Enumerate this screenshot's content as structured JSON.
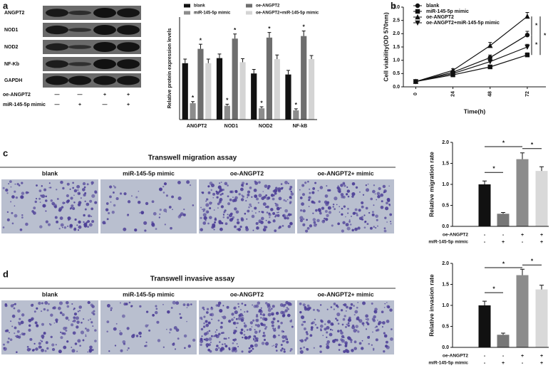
{
  "chart_data": [
    {
      "type": "bar",
      "panel": "a",
      "blot_labels": [
        "ANGPT2",
        "NOD1",
        "NOD2",
        "NF-Kb",
        "GAPDH"
      ],
      "condition_rows": [
        {
          "name": "oe-ANGPT2",
          "signs": [
            "—",
            "—",
            "+",
            "+"
          ]
        },
        {
          "name": "miR-145-5p mimic",
          "signs": [
            "—",
            "+",
            "—",
            "+"
          ]
        }
      ],
      "y_label": "Relative protein expression levels",
      "categories": [
        "ANGPT2",
        "NOD1",
        "NOD2",
        "NF-kB"
      ],
      "series": [
        {
          "name": "blank",
          "color": "#111111",
          "values": [
            1.1,
            1.2,
            0.9,
            0.88
          ],
          "errors": [
            0.08,
            0.08,
            0.08,
            0.08
          ]
        },
        {
          "name": "miR-145-5p mimic",
          "color": "#8c8c8c",
          "values": [
            0.32,
            0.27,
            0.22,
            0.18
          ],
          "errors": [
            0.03,
            0.03,
            0.03,
            0.03
          ],
          "marks": [
            "*",
            "*",
            "*",
            "*"
          ]
        },
        {
          "name": "oe-ANGPT2",
          "color": "#6e6e6e",
          "values": [
            1.38,
            1.58,
            1.6,
            1.63
          ],
          "errors": [
            0.09,
            0.09,
            0.1,
            0.1
          ],
          "marks": [
            "*",
            "*",
            "*",
            "*"
          ]
        },
        {
          "name": "oe-ANGPT2+miR-145-5p mimic",
          "color": "#d4d4d4",
          "values": [
            1.1,
            1.12,
            1.18,
            1.18
          ],
          "errors": [
            0.08,
            0.07,
            0.08,
            0.07
          ]
        }
      ],
      "ylim": [
        0,
        2
      ]
    },
    {
      "type": "line",
      "panel": "b",
      "y_label": "Cell viability(OD 570nm)",
      "x_label": "Time(h)",
      "x": [
        0,
        24,
        48,
        72
      ],
      "xlim": [
        -8,
        84
      ],
      "xticks": [
        0,
        24,
        48,
        72
      ],
      "ylim": [
        0,
        3
      ],
      "yticks": [
        {
          "value": 0,
          "label": "0.0"
        },
        0.5,
        {
          "value": 1,
          "label": "1.0"
        },
        1.5,
        {
          "value": 2,
          "label": "2.0"
        },
        2.5,
        {
          "value": 3,
          "label": "3.0"
        }
      ],
      "series": [
        {
          "name": "blank",
          "marker": "circle",
          "color": "#111111",
          "values": [
            0.2,
            0.55,
            1.1,
            1.95
          ],
          "errors": [
            0.03,
            0.06,
            0.1,
            0.14
          ]
        },
        {
          "name": "miR-145-5p mimic",
          "marker": "square",
          "color": "#111111",
          "values": [
            0.2,
            0.45,
            0.75,
            1.2
          ],
          "errors": [
            0.03,
            0.05,
            0.07,
            0.08
          ]
        },
        {
          "name": "oe-ANGPT2",
          "marker": "triangle-up",
          "color": "#111111",
          "values": [
            0.2,
            0.62,
            1.55,
            2.65
          ],
          "errors": [
            0.03,
            0.06,
            0.12,
            0.15
          ]
        },
        {
          "name": "oe-ANGPT2+miR-145-5p mimic",
          "marker": "triangle-down",
          "color": "#111111",
          "values": [
            0.2,
            0.5,
            0.95,
            1.5
          ],
          "errors": [
            0.03,
            0.05,
            0.08,
            0.1
          ]
        }
      ],
      "significance": [
        "*",
        "*",
        "*"
      ]
    },
    {
      "type": "bar",
      "panel": "c",
      "assay_title": "Transwell migration assay",
      "image_labels": [
        "blank",
        "miR-145-5p mimic",
        "oe-ANGPT2",
        "oe-ANGPT2+ mimic"
      ],
      "y_label": "Relative migration rate",
      "values": [
        1.0,
        0.3,
        1.6,
        1.32
      ],
      "errors": [
        0.08,
        0.03,
        0.15,
        0.1
      ],
      "colors": [
        "#111111",
        "#777777",
        "#8c8c8c",
        "#d9d9d9"
      ],
      "ylim": [
        0,
        2
      ],
      "yticks": [
        {
          "value": 0,
          "label": "0.0"
        },
        0.5,
        {
          "value": 1,
          "label": "1.0"
        },
        1.5,
        {
          "value": 2,
          "label": "2.0"
        }
      ],
      "condition_rows": [
        {
          "name": "oe-ANGPT2",
          "signs": [
            "-",
            "-",
            "+",
            "+"
          ]
        },
        {
          "name": "miR-145-5p mimic",
          "signs": [
            "-",
            "+",
            "-",
            "+"
          ]
        }
      ],
      "significance": [
        "*",
        "*",
        "*"
      ]
    },
    {
      "type": "bar",
      "panel": "d",
      "assay_title": "Transwell invasive assay",
      "image_labels": [
        "blank",
        "miR-145-5p mimic",
        "oe-ANGPT2",
        "oe-ANGPT2+ mimic"
      ],
      "y_label": "Relative invasion rate",
      "values": [
        1.0,
        0.3,
        1.72,
        1.38
      ],
      "errors": [
        0.1,
        0.04,
        0.14,
        0.1
      ],
      "colors": [
        "#111111",
        "#777777",
        "#8c8c8c",
        "#d9d9d9"
      ],
      "ylim": [
        0,
        2
      ],
      "yticks": [
        {
          "value": 0,
          "label": "0.0"
        },
        0.5,
        {
          "value": 1,
          "label": "1.0"
        },
        1.5,
        {
          "value": 2,
          "label": "2.0"
        }
      ],
      "condition_rows": [
        {
          "name": "oe-ANGPT2",
          "signs": [
            "-",
            "-",
            "+",
            "+"
          ]
        },
        {
          "name": "miR-145-5p mimic",
          "signs": [
            "-",
            "+",
            "-",
            "+"
          ]
        }
      ],
      "significance": [
        "*",
        "*",
        "*"
      ]
    }
  ]
}
